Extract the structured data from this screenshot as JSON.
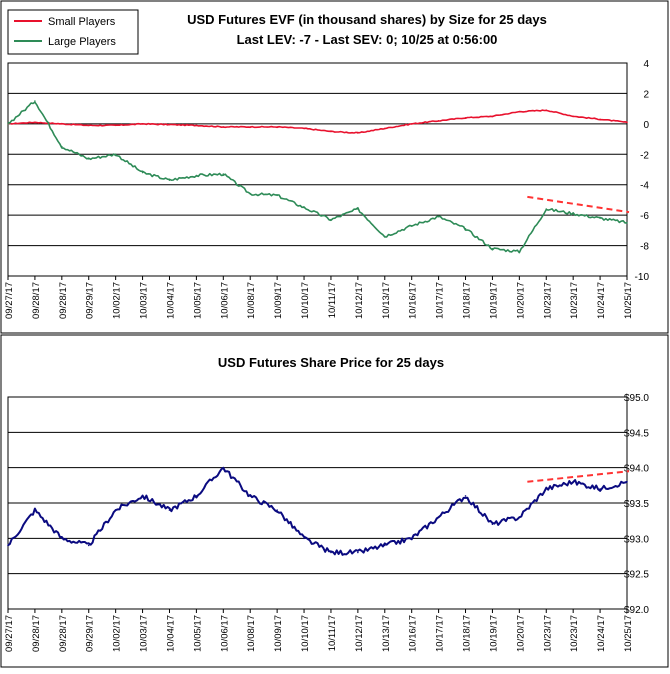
{
  "chart_data": [
    {
      "type": "line",
      "title_line1": "USD Futures EVF (in thousand shares) by Size for 25 days",
      "title_line2": "Last LEV: -7 - Last SEV: 0; 10/25 at 0:56:00",
      "ylim": [
        -10,
        4
      ],
      "yticks": [
        4,
        2,
        0,
        -2,
        -4,
        -6,
        -8,
        -10
      ],
      "ytick_labels": [
        "4",
        "2",
        "0",
        "-2",
        "-4",
        "-6",
        "-8",
        "-10"
      ],
      "grid": true,
      "legend_position": "top-left",
      "categories": [
        "09/27/17",
        "09/28/17",
        "09/28/17",
        "09/29/17",
        "10/02/17",
        "10/03/17",
        "10/04/17",
        "10/05/17",
        "10/06/17",
        "10/08/17",
        "10/09/17",
        "10/10/17",
        "10/11/17",
        "10/12/17",
        "10/13/17",
        "10/16/17",
        "10/17/17",
        "10/18/17",
        "10/19/17",
        "10/20/17",
        "10/23/17",
        "10/23/17",
        "10/24/17",
        "10/25/17"
      ],
      "series": [
        {
          "name": "Small Players",
          "color": "#e8112d",
          "values": [
            0.0,
            0.1,
            0.0,
            -0.1,
            -0.1,
            0.0,
            -0.05,
            -0.1,
            -0.2,
            -0.2,
            -0.2,
            -0.3,
            -0.5,
            -0.6,
            -0.3,
            0.0,
            0.2,
            0.4,
            0.5,
            0.8,
            0.9,
            0.5,
            0.3,
            0.1
          ]
        },
        {
          "name": "Large Players",
          "color": "#2e8b57",
          "values": [
            0.0,
            1.5,
            -1.5,
            -2.3,
            -2.0,
            -3.2,
            -3.7,
            -3.4,
            -3.3,
            -4.6,
            -4.7,
            -5.5,
            -6.3,
            -5.6,
            -7.4,
            -6.7,
            -6.1,
            -6.9,
            -8.2,
            -8.4,
            -5.6,
            -5.9,
            -6.2,
            -6.5
          ]
        }
      ],
      "trend_line": {
        "color": "#ff3333",
        "values": [
          -4.8,
          -5.8
        ]
      }
    },
    {
      "type": "line",
      "title": "USD Futures Share Price for 25 days",
      "ylim": [
        92.0,
        95.0
      ],
      "yticks": [
        95.0,
        94.5,
        94.0,
        93.5,
        93.0,
        92.5,
        92.0
      ],
      "ytick_labels": [
        "$95.0",
        "$94.5",
        "$94.0",
        "$93.5",
        "$93.0",
        "$92.5",
        "$92.0"
      ],
      "grid": true,
      "categories": [
        "09/27/17",
        "09/28/17",
        "09/28/17",
        "09/29/17",
        "10/02/17",
        "10/03/17",
        "10/04/17",
        "10/05/17",
        "10/06/17",
        "10/08/17",
        "10/09/17",
        "10/10/17",
        "10/11/17",
        "10/12/17",
        "10/13/17",
        "10/16/17",
        "10/17/17",
        "10/18/17",
        "10/19/17",
        "10/20/17",
        "10/23/17",
        "10/23/17",
        "10/24/17",
        "10/25/17"
      ],
      "series": [
        {
          "name": "Share Price",
          "color": "#0a0a80",
          "values": [
            92.9,
            93.4,
            93.0,
            92.9,
            93.4,
            93.6,
            93.4,
            93.6,
            94.0,
            93.6,
            93.4,
            93.0,
            92.8,
            92.8,
            92.9,
            93.0,
            93.3,
            93.6,
            93.2,
            93.3,
            93.7,
            93.8,
            93.7,
            93.8
          ]
        }
      ],
      "trend_line": {
        "color": "#ff3333",
        "values": [
          93.8,
          93.95
        ]
      }
    }
  ]
}
